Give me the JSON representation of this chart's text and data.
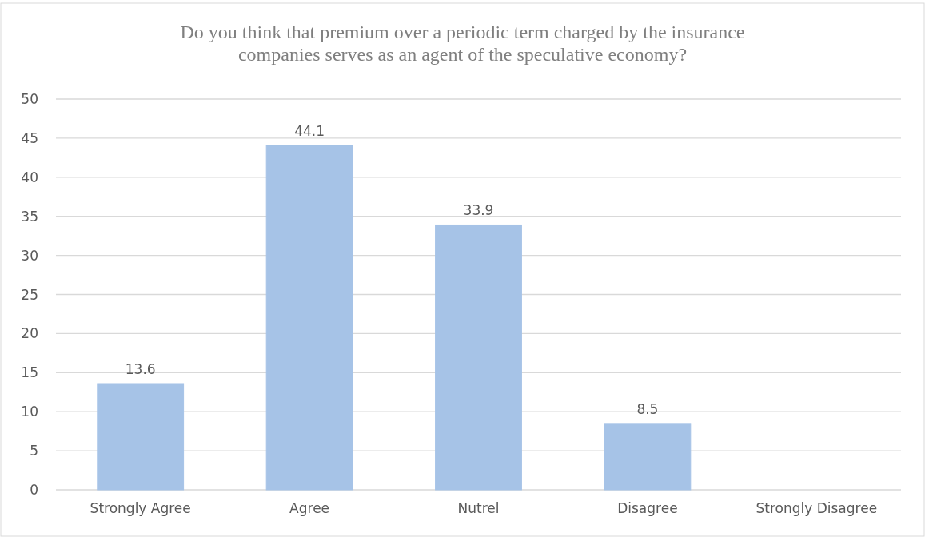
{
  "chart_data": {
    "type": "bar",
    "title": "Do you think that premium over a periodic term charged by the insurance companies serves as an agent of the speculative economy?",
    "categories": [
      "Strongly Agree",
      "Agree",
      "Nutrel",
      "Disagree",
      "Strongly Disagree"
    ],
    "values": [
      13.6,
      44.1,
      33.9,
      8.5,
      null
    ],
    "color": "#a6c3e7",
    "ylim": [
      0,
      50
    ],
    "yticks": [
      0,
      5,
      10,
      15,
      20,
      25,
      30,
      35,
      40,
      45,
      50
    ],
    "grid": "y",
    "data_labels": true
  }
}
